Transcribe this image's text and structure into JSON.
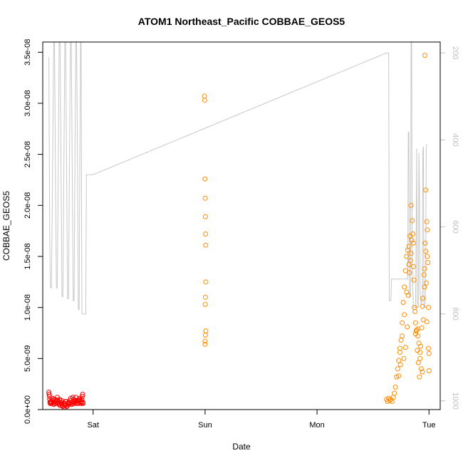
{
  "chart_data": {
    "type": "scatter",
    "title": "ATOM1 Northeast_Pacific COBBAE_GEOS5",
    "xlabel": "Date",
    "ylabel": "COBBAE_GEOS5",
    "x_tick_labels": [
      "Sat",
      "Sun",
      "Mon",
      "Tue"
    ],
    "x_unit": "days since Fri 00:00",
    "xlim": [
      0.55,
      4.1
    ],
    "ylim": [
      0,
      3.6e-08
    ],
    "y_ticks": [
      0,
      5e-09,
      1e-08,
      1.5e-08,
      2e-08,
      2.5e-08,
      3e-08,
      3.5e-08
    ],
    "y_tick_labels": [
      "0.0e+00",
      "5.0e-09",
      "1.0e-08",
      "1.5e-08",
      "2.0e-08",
      "2.5e-08",
      "3.0e-08",
      "3.5e-08"
    ],
    "right_axis": {
      "quantity": "pressure",
      "lim": [
        1020,
        175
      ],
      "ticks": [
        200,
        400,
        600,
        800,
        1000
      ],
      "tick_labels": [
        "200",
        "400",
        "600",
        "800",
        "1000"
      ],
      "line_color": "#c8c8c8"
    },
    "pressure_profile": [
      [
        0.605,
        210
      ],
      [
        0.612,
        600
      ],
      [
        0.618,
        740
      ],
      [
        0.628,
        740
      ],
      [
        0.64,
        420
      ],
      [
        0.648,
        175
      ],
      [
        0.655,
        175
      ],
      [
        0.662,
        420
      ],
      [
        0.672,
        740
      ],
      [
        0.68,
        740
      ],
      [
        0.69,
        420
      ],
      [
        0.697,
        175
      ],
      [
        0.705,
        175
      ],
      [
        0.712,
        420
      ],
      [
        0.722,
        760
      ],
      [
        0.73,
        760
      ],
      [
        0.74,
        420
      ],
      [
        0.747,
        175
      ],
      [
        0.755,
        175
      ],
      [
        0.762,
        420
      ],
      [
        0.772,
        765
      ],
      [
        0.78,
        765
      ],
      [
        0.79,
        420
      ],
      [
        0.797,
        175
      ],
      [
        0.805,
        175
      ],
      [
        0.812,
        420
      ],
      [
        0.822,
        770
      ],
      [
        0.83,
        770
      ],
      [
        0.838,
        420
      ],
      [
        0.845,
        175
      ],
      [
        0.852,
        175
      ],
      [
        0.86,
        420
      ],
      [
        0.868,
        790
      ],
      [
        0.875,
        790
      ],
      [
        0.882,
        420
      ],
      [
        0.888,
        175
      ],
      [
        0.893,
        175
      ],
      [
        0.897,
        540
      ],
      [
        0.9,
        800
      ],
      [
        0.935,
        800
      ],
      [
        0.935,
        780
      ],
      [
        0.94,
        480
      ],
      [
        1.0,
        480
      ],
      [
        3.62,
        200
      ],
      [
        3.64,
        200
      ],
      [
        3.645,
        770
      ],
      [
        3.66,
        770
      ],
      [
        3.665,
        720
      ],
      [
        3.8,
        720
      ],
      [
        3.81,
        720
      ],
      [
        3.815,
        380
      ],
      [
        3.82,
        385
      ],
      [
        3.825,
        760
      ],
      [
        3.835,
        760
      ],
      [
        3.84,
        175
      ],
      [
        3.845,
        175
      ],
      [
        3.85,
        680
      ],
      [
        3.86,
        785
      ],
      [
        3.88,
        785
      ],
      [
        3.885,
        620
      ],
      [
        3.89,
        420
      ],
      [
        3.895,
        785
      ],
      [
        3.905,
        785
      ],
      [
        3.91,
        430
      ],
      [
        3.915,
        520
      ],
      [
        3.92,
        750
      ],
      [
        3.93,
        780
      ],
      [
        3.94,
        760
      ],
      [
        3.945,
        425
      ],
      [
        3.95,
        415
      ],
      [
        3.955,
        785
      ],
      [
        3.965,
        785
      ],
      [
        3.97,
        725
      ],
      [
        3.975,
        420
      ],
      [
        3.98,
        410
      ]
    ],
    "series": [
      {
        "color": "#ff0000",
        "points": [
          [
            0.605,
            1.7e-09
          ],
          [
            0.608,
            1.5e-09
          ],
          [
            0.61,
            1.3e-09
          ],
          [
            0.612,
            1e-09
          ],
          [
            0.614,
            7e-10
          ],
          [
            0.616,
            6e-10
          ],
          [
            0.62,
            8e-10
          ],
          [
            0.625,
            6e-10
          ],
          [
            0.63,
            7e-10
          ],
          [
            0.635,
            9e-10
          ],
          [
            0.64,
            1.1e-09
          ],
          [
            0.645,
            6e-10
          ],
          [
            0.65,
            5e-10
          ],
          [
            0.655,
            7e-10
          ],
          [
            0.66,
            1e-09
          ],
          [
            0.665,
            8e-10
          ],
          [
            0.67,
            6e-10
          ],
          [
            0.675,
            9e-10
          ],
          [
            0.68,
            1.2e-09
          ],
          [
            0.685,
            9e-10
          ],
          [
            0.69,
            7e-10
          ],
          [
            0.695,
            5e-10
          ],
          [
            0.7,
            6e-10
          ],
          [
            0.705,
            4e-10
          ],
          [
            0.71,
            7e-10
          ],
          [
            0.715,
            9e-10
          ],
          [
            0.72,
            6e-10
          ],
          [
            0.725,
            4e-10
          ],
          [
            0.73,
            3e-10
          ],
          [
            0.735,
            5e-10
          ],
          [
            0.74,
            2e-10
          ],
          [
            0.745,
            4e-10
          ],
          [
            0.75,
            6e-10
          ],
          [
            0.755,
            8e-10
          ],
          [
            0.76,
            5e-10
          ],
          [
            0.765,
            3e-10
          ],
          [
            0.77,
            4e-10
          ],
          [
            0.775,
            6e-10
          ],
          [
            0.78,
            7e-10
          ],
          [
            0.785,
            5e-10
          ],
          [
            0.79,
            6e-10
          ],
          [
            0.795,
            9e-10
          ],
          [
            0.8,
            1.1e-09
          ],
          [
            0.805,
            7e-10
          ],
          [
            0.81,
            5e-10
          ],
          [
            0.815,
            6e-10
          ],
          [
            0.82,
            8e-10
          ],
          [
            0.825,
            1e-09
          ],
          [
            0.83,
            7e-10
          ],
          [
            0.835,
            6e-10
          ],
          [
            0.84,
            9e-10
          ],
          [
            0.845,
            1.2e-09
          ],
          [
            0.85,
            8e-10
          ],
          [
            0.855,
            6e-10
          ],
          [
            0.86,
            7e-10
          ],
          [
            0.865,
            9e-10
          ],
          [
            0.87,
            6e-10
          ],
          [
            0.875,
            8e-10
          ],
          [
            0.88,
            1.1e-09
          ],
          [
            0.885,
            9e-10
          ],
          [
            0.89,
            7e-10
          ],
          [
            0.893,
            6e-10
          ],
          [
            0.897,
            8e-10
          ],
          [
            0.9,
            1e-09
          ],
          [
            0.903,
            1.3e-09
          ],
          [
            0.906,
            1.5e-09
          ],
          [
            0.908,
            7e-10
          ],
          [
            0.91,
            6e-10
          ],
          [
            0.648,
            1e-09
          ],
          [
            0.7,
            1e-09
          ],
          [
            0.76,
            8e-10
          ],
          [
            0.82,
            1.2e-09
          ],
          [
            0.87,
            1e-09
          ]
        ]
      },
      {
        "color": "#ff8c00",
        "points": [
          [
            1.995,
            3.07e-08
          ],
          [
            1.997,
            3.03e-08
          ],
          [
            1.999,
            2.26e-08
          ],
          [
            2.001,
            2.07e-08
          ],
          [
            2.003,
            1.89e-08
          ],
          [
            2.004,
            1.72e-08
          ],
          [
            2.005,
            1.61e-08
          ],
          [
            2.006,
            1.25e-08
          ],
          [
            2.003,
            1.1e-08
          ],
          [
            2.002,
            1.03e-08
          ],
          [
            2.006,
            7.7e-09
          ],
          [
            2.003,
            7.3e-09
          ],
          [
            2.0,
            6.7e-09
          ],
          [
            2.0,
            6.4e-09
          ],
          [
            3.62,
            1e-09
          ],
          [
            3.63,
            8e-10
          ],
          [
            3.64,
            1.1e-09
          ],
          [
            3.65,
            9e-10
          ],
          [
            3.66,
            1e-09
          ],
          [
            3.67,
            8e-10
          ],
          [
            3.68,
            1.2e-09
          ],
          [
            3.69,
            1.6e-09
          ],
          [
            3.7,
            2.2e-09
          ],
          [
            3.71,
            3.2e-09
          ],
          [
            3.72,
            4e-09
          ],
          [
            3.73,
            4.8e-09
          ],
          [
            3.74,
            5.6e-09
          ],
          [
            3.75,
            6.8e-09
          ],
          [
            3.76,
            8.5e-09
          ],
          [
            3.77,
            1.05e-08
          ],
          [
            3.78,
            1.2e-08
          ],
          [
            3.79,
            1.36e-08
          ],
          [
            3.8,
            1.5e-08
          ],
          [
            3.81,
            1.56e-08
          ],
          [
            3.82,
            1.6e-08
          ],
          [
            3.83,
            1.7e-08
          ],
          [
            3.84,
            2e-08
          ],
          [
            3.85,
            1.85e-08
          ],
          [
            3.86,
            1.4e-08
          ],
          [
            3.87,
            1e-08
          ],
          [
            3.88,
            8.5e-09
          ],
          [
            3.89,
            7.8e-09
          ],
          [
            3.9,
            7.2e-09
          ],
          [
            3.91,
            6.5e-09
          ],
          [
            3.92,
            5e-09
          ],
          [
            3.93,
            4e-09
          ],
          [
            3.94,
            3.7e-09
          ],
          [
            3.95,
            8.8e-09
          ],
          [
            3.96,
            1.2e-08
          ],
          [
            3.97,
            1.55e-08
          ],
          [
            3.98,
            1.84e-08
          ],
          [
            3.985,
            1.76e-08
          ],
          [
            3.99,
            1.44e-08
          ],
          [
            3.995,
            1e-08
          ],
          [
            4.0,
            5.5e-09
          ],
          [
            4.0,
            3.8e-09
          ],
          [
            3.963,
            3.47e-08
          ],
          [
            3.97,
            2.15e-08
          ],
          [
            3.985,
            1.5e-08
          ],
          [
            3.73,
            3.3e-09
          ],
          [
            3.745,
            4.4e-09
          ],
          [
            3.775,
            5e-09
          ],
          [
            3.79,
            6.1e-09
          ],
          [
            3.805,
            8.1e-09
          ],
          [
            3.815,
            1.12e-08
          ],
          [
            3.825,
            1.34e-08
          ],
          [
            3.835,
            1.46e-08
          ],
          [
            3.845,
            1.66e-08
          ],
          [
            3.855,
            1.72e-08
          ],
          [
            3.865,
            1.27e-08
          ],
          [
            3.875,
            9.6e-09
          ],
          [
            3.885,
            7.7e-09
          ],
          [
            3.895,
            5.8e-09
          ],
          [
            3.905,
            4.6e-09
          ],
          [
            3.915,
            3.2e-09
          ],
          [
            3.925,
            6.2e-09
          ],
          [
            3.935,
            8e-09
          ],
          [
            3.945,
            1.09e-08
          ],
          [
            3.955,
            1.32e-08
          ],
          [
            3.965,
            1.63e-08
          ],
          [
            3.975,
            1.24e-08
          ],
          [
            3.995,
            6e-09
          ],
          [
            3.74,
            6e-09
          ],
          [
            3.76,
            7.2e-09
          ],
          [
            3.78,
            9.3e-09
          ],
          [
            3.8,
            1.15e-08
          ],
          [
            3.82,
            1.42e-08
          ],
          [
            3.84,
            1.53e-08
          ],
          [
            3.86,
            1.63e-08
          ],
          [
            3.88,
            7.4e-09
          ],
          [
            3.9,
            7.9e-09
          ],
          [
            3.92,
            5.6e-09
          ],
          [
            3.94,
            1.01e-08
          ],
          [
            3.96,
            1.38e-08
          ],
          [
            3.98,
            8.6e-09
          ]
        ]
      }
    ]
  }
}
